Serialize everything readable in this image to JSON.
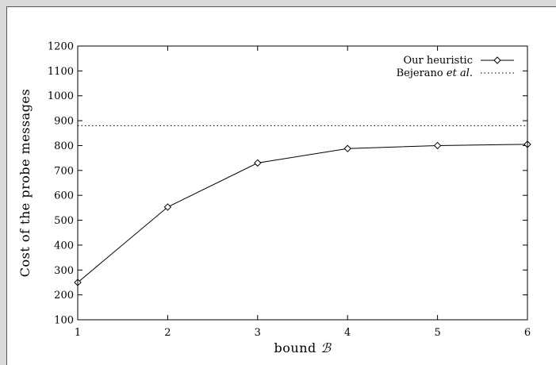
{
  "chart_data": {
    "type": "line",
    "ylabel": "Cost of the probe messages",
    "xlabel": "bound ",
    "xlabel_symbol": "ℬ",
    "x": [
      1,
      2,
      3,
      4,
      5,
      6
    ],
    "xlim": [
      1,
      6
    ],
    "ylim": [
      100,
      1200
    ],
    "xticks": [
      "1",
      "2",
      "3",
      "4",
      "5",
      "6"
    ],
    "yticks": [
      "100",
      "200",
      "300",
      "400",
      "500",
      "600",
      "700",
      "800",
      "900",
      "1000",
      "1100",
      "1200"
    ],
    "grid": false,
    "legend_position": "top-right",
    "series": [
      {
        "name": "Our heuristic",
        "style": "solid",
        "marker": "diamond",
        "x": [
          1,
          2,
          3,
          4,
          5,
          6
        ],
        "values": [
          250,
          553,
          730,
          788,
          800,
          805
        ]
      },
      {
        "name_prefix": "Bejerano ",
        "name_suffix": "et al.",
        "style": "dotted",
        "constant": 880
      }
    ],
    "colors": {
      "line": "#000000",
      "background": "#ffffff",
      "page": "#d9d9d9"
    }
  }
}
